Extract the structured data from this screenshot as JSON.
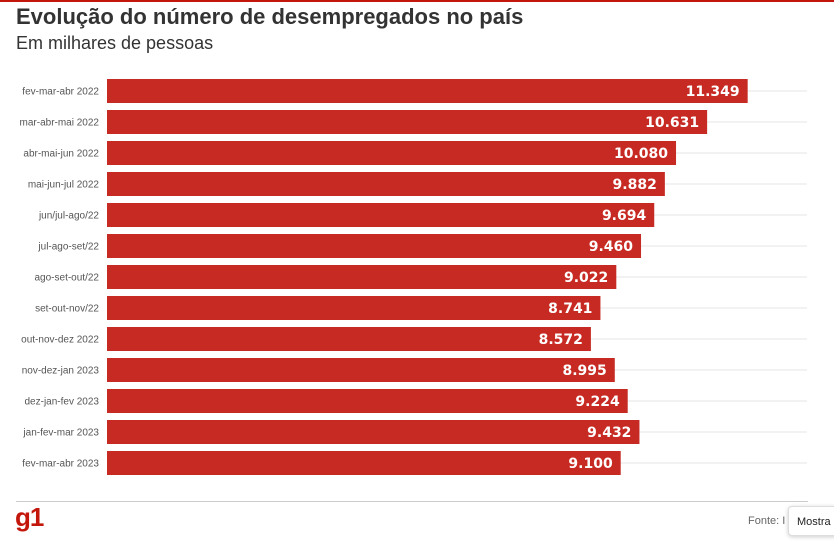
{
  "header": {
    "title": "Evolução do número de desempregados no país",
    "subtitle": "Em milhares de pessoas"
  },
  "footer": {
    "logo": "g1",
    "source": "Fonte: I",
    "show_button": "Mostra"
  },
  "colors": {
    "bar": "#c62a23",
    "accent": "#c4170c"
  },
  "chart_data": {
    "type": "bar",
    "orientation": "horizontal",
    "categories": [
      "fev-mar-abr 2022",
      "mar-abr-mai 2022",
      "abr-mai-jun 2022",
      "mai-jun-jul 2022",
      "jun/jul-ago/22",
      "jul-ago-set/22",
      "ago-set-out/22",
      "set-out-nov/22",
      "out-nov-dez 2022",
      "nov-dez-jan 2023",
      "dez-jan-fev 2023",
      "jan-fev-mar 2023",
      "fev-mar-abr 2023"
    ],
    "values": [
      11349,
      10631,
      10080,
      9882,
      9694,
      9460,
      9022,
      8741,
      8572,
      8995,
      9224,
      9432,
      9100
    ],
    "data_labels": [
      "11.349",
      "10.631",
      "10.080",
      "9.882",
      "9.694",
      "9.460",
      "9.022",
      "8.741",
      "8.572",
      "8.995",
      "9.224",
      "9.432",
      "9.100"
    ],
    "xlim": [
      0,
      12400
    ],
    "grid": true
  }
}
